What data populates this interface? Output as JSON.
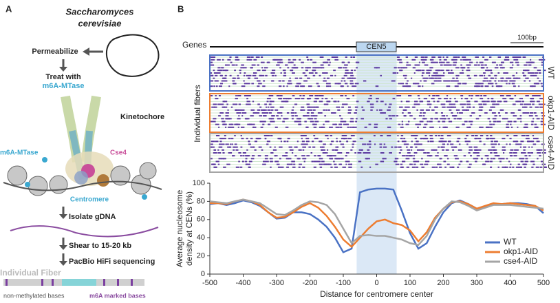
{
  "panel_a": {
    "label": "A",
    "organism": [
      "Saccharomyces",
      "cerevisiae"
    ],
    "steps": [
      "Permeabilize",
      "Treat with",
      "m6A-MTase",
      "Isolate gDNA",
      "Shear to 15-20 kb",
      "PacBio HiFi sequencing"
    ],
    "labels": {
      "kinetochore": "Kinetochore",
      "mtase": "m6A-MTase",
      "cse4": "Cse4",
      "centromere": "Centromere",
      "fiber": "Individual Fiber",
      "unmethylated": "non-methylated bases",
      "marked": "m6A marked bases"
    }
  },
  "panel_b": {
    "label": "B",
    "genes": "Genes",
    "cen": "CEN5",
    "scale": "100bp",
    "fibers": "Individual fibers",
    "tracks": [
      {
        "name": "WT",
        "color": "#4a72c4"
      },
      {
        "name": "okp1-AID",
        "color": "#ed7d31"
      },
      {
        "name": "cse4-AID",
        "color": "#a5a5a5"
      }
    ]
  },
  "chart_data": {
    "type": "line",
    "y_label": [
      "Average nucleosome",
      "density at CENs (%)"
    ],
    "x_label": "Distance for centromere center",
    "highlight": [
      -60,
      60
    ],
    "x": [
      -500,
      -475,
      -450,
      -425,
      -400,
      -375,
      -350,
      -325,
      -300,
      -275,
      -250,
      -225,
      -200,
      -175,
      -150,
      -125,
      -100,
      -75,
      -50,
      -25,
      0,
      25,
      50,
      75,
      100,
      125,
      150,
      175,
      200,
      225,
      250,
      275,
      300,
      325,
      350,
      375,
      400,
      425,
      450,
      475,
      500
    ],
    "series": [
      {
        "name": "WT",
        "color": "#4a72c4",
        "values": [
          77,
          78,
          76,
          78,
          81,
          79,
          75,
          68,
          61,
          62,
          68,
          68,
          66,
          60,
          52,
          40,
          24,
          28,
          90,
          93,
          94,
          94,
          93,
          70,
          45,
          28,
          34,
          52,
          68,
          78,
          81,
          77,
          72,
          74,
          77,
          77,
          78,
          78,
          77,
          75,
          67
        ]
      },
      {
        "name": "okp1-AID",
        "color": "#ed7d31",
        "values": [
          78,
          78,
          77,
          80,
          82,
          80,
          76,
          68,
          62,
          63,
          68,
          74,
          78,
          73,
          64,
          52,
          38,
          30,
          40,
          50,
          58,
          60,
          56,
          54,
          48,
          36,
          46,
          62,
          72,
          79,
          80,
          77,
          72,
          75,
          78,
          77,
          78,
          77,
          76,
          75,
          70
        ]
      },
      {
        "name": "cse4-AID",
        "color": "#a5a5a5",
        "values": [
          80,
          79,
          78,
          80,
          82,
          80,
          78,
          72,
          66,
          65,
          70,
          76,
          80,
          79,
          76,
          66,
          50,
          34,
          42,
          43,
          42,
          42,
          40,
          38,
          34,
          32,
          42,
          60,
          72,
          80,
          79,
          75,
          70,
          73,
          76,
          76,
          76,
          75,
          74,
          73,
          72
        ]
      }
    ],
    "xlim": [
      -500,
      500
    ],
    "ylim": [
      0,
      100
    ],
    "xticks": [
      -500,
      -400,
      -300,
      -200,
      -100,
      0,
      100,
      200,
      300,
      400,
      500
    ],
    "yticks": [
      0,
      20,
      40,
      60,
      80,
      100
    ],
    "legend": "lower-right"
  }
}
